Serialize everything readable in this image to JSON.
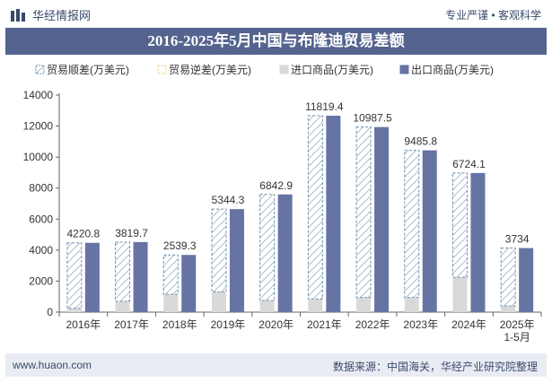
{
  "header": {
    "brand": "华经情报网",
    "tags": "专业严谨 • 客观科学"
  },
  "title": "2016-2025年5月中国与布隆迪贸易差额",
  "footer": {
    "website": "www.huaon.com",
    "source": "数据来源：中国海关，华经产业研究院整理"
  },
  "colors": {
    "title_bg": "#55648f",
    "surplus": "#6f8fb0",
    "deficit": "#f0d37a",
    "import": "#d9d9d9",
    "export": "#6674a3"
  },
  "chart_data": {
    "type": "bar",
    "categories": [
      "2016年",
      "2017年",
      "2018年",
      "2019年",
      "2020年",
      "2021年",
      "2022年",
      "2023年",
      "2024年",
      "2025年\n1-5月"
    ],
    "ylim": [
      0,
      14000
    ],
    "yticks": [
      0,
      2000,
      4000,
      6000,
      8000,
      10000,
      12000,
      14000
    ],
    "legend_position": "top",
    "series": [
      {
        "name": "贸易顺差(万美元)",
        "values": [
          4220.8,
          3819.7,
          2539.3,
          5344.3,
          6842.9,
          11819.4,
          10987.5,
          9485.8,
          6724.1,
          3734
        ]
      },
      {
        "name": "贸易逆差(万美元)",
        "values": [
          0,
          0,
          0,
          0,
          0,
          0,
          0,
          0,
          0,
          0
        ]
      },
      {
        "name": "进口商品(万美元)",
        "values": [
          250,
          700,
          1150,
          1300,
          750,
          850,
          950,
          950,
          2250,
          400
        ]
      },
      {
        "name": "出口商品(万美元)",
        "values": [
          4470.8,
          4519.7,
          3689.3,
          6644.3,
          7592.9,
          12669.4,
          11937.5,
          10435.8,
          8974.1,
          4134
        ]
      }
    ],
    "data_labels": [
      "4220.8",
      "3819.7",
      "2539.3",
      "5344.3",
      "6842.9",
      "11819.4",
      "10987.5",
      "9485.8",
      "6724.1",
      "3734"
    ]
  }
}
